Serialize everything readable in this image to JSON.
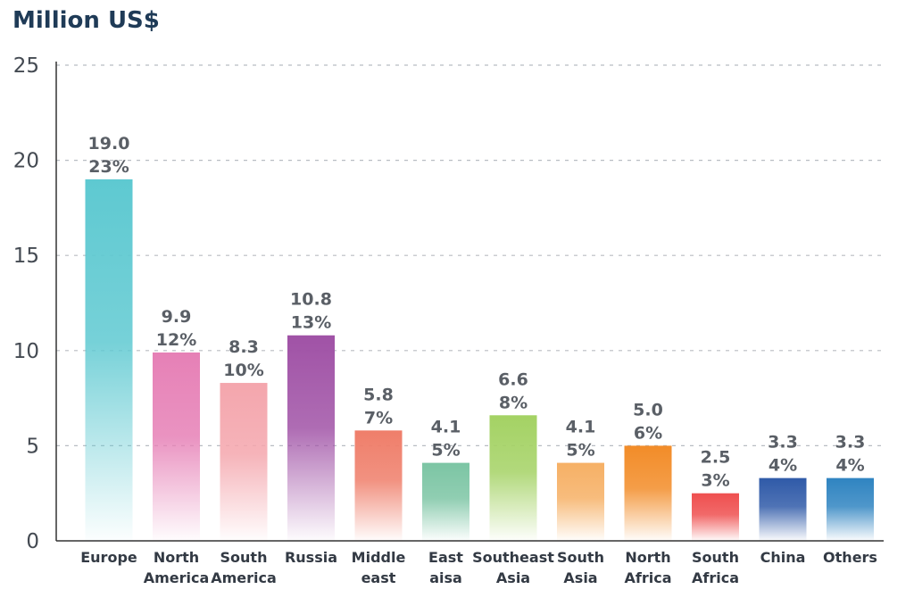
{
  "chart_data": {
    "type": "bar",
    "ylabel": "Million US$",
    "ylim": [
      0,
      25
    ],
    "yticks": [
      0,
      5,
      10,
      15,
      20,
      25
    ],
    "grid": true,
    "categories": [
      "Europe",
      "North America",
      "South America",
      "Russia",
      "Middle east",
      "East aisa",
      "Southeast Asia",
      "South Asia",
      "North Africa",
      "South Africa",
      "China",
      "Others"
    ],
    "category_lines": [
      [
        "Europe"
      ],
      [
        "North",
        "America"
      ],
      [
        "South",
        "America"
      ],
      [
        "Russia"
      ],
      [
        "Middle",
        "east"
      ],
      [
        "East",
        "aisa"
      ],
      [
        "Southeast",
        "Asia"
      ],
      [
        "South",
        "Asia"
      ],
      [
        "North",
        "Africa"
      ],
      [
        "South",
        "Africa"
      ],
      [
        "China"
      ],
      [
        "Others"
      ]
    ],
    "values": [
      19.0,
      9.9,
      8.3,
      10.8,
      5.8,
      4.1,
      6.6,
      4.1,
      5.0,
      2.5,
      3.3,
      3.3
    ],
    "value_labels": [
      "19.0",
      "9.9",
      "8.3",
      "10.8",
      "5.8",
      "4.1",
      "6.6",
      "4.1",
      "5.0",
      "2.5",
      "3.3",
      "3.3"
    ],
    "percent_labels": [
      "23%",
      "12%",
      "10%",
      "13%",
      "7%",
      "5%",
      "8%",
      "5%",
      "6%",
      "3%",
      "4%",
      "4%"
    ],
    "colors": [
      "#5ec9d1",
      "#e680b6",
      "#f4a6ad",
      "#a052a6",
      "#ef7e6a",
      "#7cc5a4",
      "#a4d264",
      "#f6b065",
      "#f28c28",
      "#ef4f4f",
      "#2f5aa8",
      "#2f84c1"
    ]
  }
}
